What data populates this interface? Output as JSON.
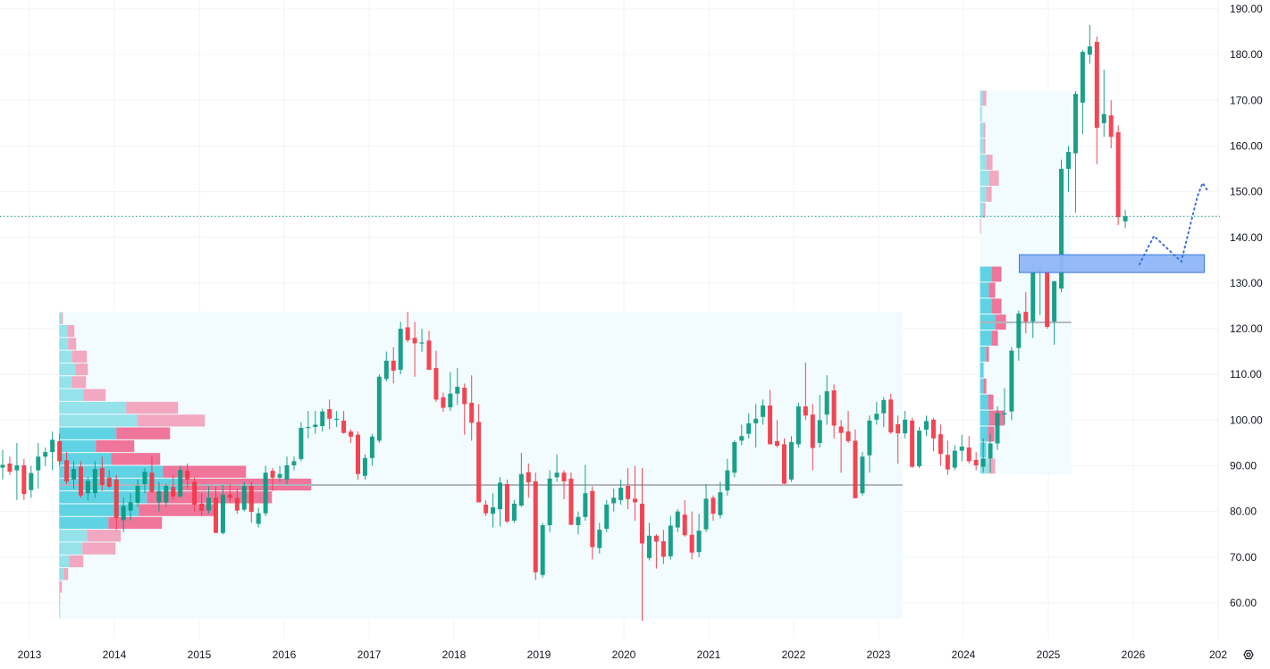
{
  "chart_data": {
    "type": "candlestick",
    "title": "",
    "interval": "1M",
    "start_month": "2012-09",
    "colors": {
      "up": "#089981",
      "down": "#f23645",
      "grid": "#f0f3fa",
      "profile_bg": "#f2fbfe",
      "poc": "#b2b5be",
      "zone_fill": "#8fb6f7",
      "zone_border": "#3c7be0",
      "projection": "#3c6fd8"
    },
    "ylim": [
      52,
      192
    ],
    "y_ticks": [
      "190.00",
      "180.00",
      "170.00",
      "160.00",
      "150.00",
      "140.00",
      "130.00",
      "120.00",
      "110.00",
      "100.00",
      "90.00",
      "80.00",
      "70.00",
      "60.00"
    ],
    "x_ticks": [
      "2013",
      "2014",
      "2015",
      "2016",
      "2017",
      "2018",
      "2019",
      "2020",
      "2021",
      "2022",
      "2023",
      "2024",
      "2025",
      "2026",
      "202"
    ],
    "last_price": 144.6,
    "candles": [
      [
        89.6,
        93.5,
        87,
        90.2
      ],
      [
        90.5,
        92,
        88,
        88.7
      ],
      [
        89,
        95,
        82.5,
        90.1
      ],
      [
        90.1,
        91.5,
        82.5,
        83.8
      ],
      [
        84.7,
        90,
        83,
        88.4
      ],
      [
        89,
        95,
        85,
        92
      ],
      [
        92,
        94,
        90,
        93
      ],
      [
        93,
        97.5,
        89,
        95.7
      ],
      [
        95.4,
        97,
        90,
        91
      ],
      [
        91.2,
        93,
        86,
        86.6
      ],
      [
        87,
        91,
        85,
        89.3
      ],
      [
        89.8,
        91,
        83,
        83.5
      ],
      [
        84,
        87.5,
        82.5,
        86.7
      ],
      [
        84,
        91,
        83,
        89.3
      ],
      [
        89.5,
        92,
        84.5,
        85.8
      ],
      [
        87.4,
        89,
        85,
        85.4
      ],
      [
        87,
        88,
        76,
        78.6
      ],
      [
        78.1,
        83,
        75.5,
        81.2
      ],
      [
        80.2,
        84,
        78,
        82
      ],
      [
        81.9,
        87,
        81,
        85.6
      ],
      [
        86,
        89.5,
        84,
        88.7
      ],
      [
        88.5,
        92,
        84,
        84.3
      ],
      [
        82,
        86.5,
        80,
        84.5
      ],
      [
        82,
        86,
        81,
        85.6
      ],
      [
        85.4,
        88,
        82.5,
        83.3
      ],
      [
        83.3,
        90,
        83,
        89.1
      ],
      [
        88.9,
        90.5,
        85,
        87
      ],
      [
        86.5,
        87.5,
        80,
        81.5
      ],
      [
        81.7,
        84,
        79,
        80.2
      ],
      [
        80.2,
        85.5,
        79.5,
        83
      ],
      [
        83,
        85.5,
        75.3,
        75.3
      ],
      [
        75.3,
        85.8,
        75,
        83.7
      ],
      [
        83.7,
        86,
        82,
        83
      ],
      [
        83,
        85,
        79.5,
        80.2
      ],
      [
        80.4,
        86.5,
        80,
        85.6
      ],
      [
        85.6,
        86.5,
        77.5,
        79.9
      ],
      [
        77.3,
        80.8,
        76.5,
        79.6
      ],
      [
        79.6,
        90,
        79,
        88.5
      ],
      [
        88.9,
        89.5,
        84.5,
        87.4
      ],
      [
        87.4,
        90,
        86.5,
        88.2
      ],
      [
        87,
        92,
        86,
        90.1
      ],
      [
        90.1,
        92,
        89,
        91
      ],
      [
        91.5,
        99.5,
        91,
        98.3
      ],
      [
        98.3,
        102,
        96,
        98.5
      ],
      [
        98.5,
        102,
        97,
        99
      ],
      [
        98.7,
        102.5,
        97.5,
        101.9
      ],
      [
        102.4,
        104.5,
        98,
        100.3
      ],
      [
        100.3,
        102,
        98.5,
        100.3
      ],
      [
        99.9,
        102,
        97,
        97.2
      ],
      [
        97.5,
        98,
        95,
        96.4
      ],
      [
        96.8,
        97.5,
        87,
        88.2
      ],
      [
        87.8,
        92.5,
        87,
        91.7
      ],
      [
        91.7,
        97,
        90,
        96.4
      ],
      [
        95.5,
        110,
        95,
        109.5
      ],
      [
        109,
        115,
        108.5,
        113
      ],
      [
        113,
        116,
        108,
        110.8
      ],
      [
        111,
        121.5,
        110,
        120
      ],
      [
        120.3,
        123.7,
        117,
        117.5
      ],
      [
        118,
        121.5,
        109.5,
        116.8
      ],
      [
        117,
        120,
        115,
        117
      ],
      [
        117.4,
        119.5,
        111,
        111
      ],
      [
        111.4,
        115.2,
        104,
        104.5
      ],
      [
        105,
        106,
        101.8,
        102.7
      ],
      [
        102.8,
        110.5,
        102,
        105.8
      ],
      [
        105.8,
        111.4,
        103.3,
        107.3
      ],
      [
        107.1,
        108,
        96.8,
        103.5
      ],
      [
        103.8,
        109.8,
        95.5,
        99.4
      ],
      [
        99.6,
        103.5,
        82,
        82
      ],
      [
        81.5,
        82.5,
        79,
        79.6
      ],
      [
        79.5,
        84,
        76.5,
        80.9
      ],
      [
        80.5,
        87.5,
        76.7,
        86.3
      ],
      [
        86,
        87,
        77.5,
        77.8
      ],
      [
        78,
        82.5,
        77.5,
        81.7
      ],
      [
        81.3,
        92.8,
        81,
        88.2
      ],
      [
        88.6,
        90.5,
        83,
        86.4
      ],
      [
        86.6,
        88.5,
        65,
        66.7
      ],
      [
        66.1,
        77.5,
        65.5,
        77
      ],
      [
        77,
        89,
        75.5,
        87.2
      ],
      [
        87.5,
        92.5,
        86.5,
        88.5
      ],
      [
        88.5,
        89,
        82.7,
        86.6
      ],
      [
        87.2,
        88.5,
        77,
        77.1
      ],
      [
        77,
        80,
        75,
        78.8
      ],
      [
        78.8,
        90.2,
        78,
        84
      ],
      [
        84.5,
        85.5,
        69.5,
        72.2
      ],
      [
        72,
        77.5,
        70.8,
        76
      ],
      [
        76.2,
        82.5,
        75.5,
        81.5
      ],
      [
        81.8,
        85,
        80,
        83
      ],
      [
        82.5,
        87,
        81.5,
        85.2
      ],
      [
        85.6,
        89.5,
        80.5,
        82.7
      ],
      [
        82.8,
        90,
        78,
        82
      ],
      [
        81.7,
        89.5,
        56.1,
        73
      ],
      [
        69.8,
        77.5,
        69.3,
        74.7
      ],
      [
        74.7,
        75,
        67.5,
        73.4
      ],
      [
        73.5,
        76,
        68.5,
        70.1
      ],
      [
        70.2,
        79,
        69.5,
        76.9
      ],
      [
        76.5,
        80.5,
        75.5,
        80
      ],
      [
        79.3,
        82.5,
        74.5,
        74.8
      ],
      [
        74.9,
        80,
        69.5,
        71
      ],
      [
        71.1,
        79.5,
        70,
        75.8
      ],
      [
        76.1,
        86,
        75.5,
        82.8
      ],
      [
        83,
        83.5,
        78,
        79.5
      ],
      [
        79.2,
        86.5,
        78.5,
        84.2
      ],
      [
        84.6,
        91.5,
        83.5,
        89
      ],
      [
        88.5,
        95.6,
        87.5,
        95.2
      ],
      [
        95.5,
        99,
        94.5,
        96.5
      ],
      [
        97,
        101.5,
        96,
        99.3
      ],
      [
        99.3,
        103.5,
        94,
        100.3
      ],
      [
        100.7,
        104.5,
        99,
        103.2
      ],
      [
        103.2,
        106.6,
        95,
        94.7
      ],
      [
        95.4,
        100,
        94,
        94.4
      ],
      [
        94.7,
        96,
        86,
        86.1
      ],
      [
        87,
        96.5,
        86.5,
        95.2
      ],
      [
        94.7,
        103.8,
        94,
        103
      ],
      [
        103,
        112.6,
        100,
        101
      ],
      [
        101.2,
        103.5,
        89,
        93.9
      ],
      [
        95,
        105.5,
        94,
        100
      ],
      [
        101.2,
        109.8,
        99,
        106.3
      ],
      [
        106.5,
        107.8,
        96,
        98.8
      ],
      [
        98.6,
        100,
        88.5,
        97.2
      ],
      [
        97.5,
        102,
        95,
        95.4
      ],
      [
        95.5,
        98,
        82.9,
        82.9
      ],
      [
        84,
        93,
        83.5,
        92
      ],
      [
        92.3,
        101,
        88.5,
        99.9
      ],
      [
        100.1,
        104,
        99,
        101.4
      ],
      [
        101.5,
        105,
        98.5,
        104.4
      ],
      [
        104.5,
        105.8,
        97,
        97.3
      ],
      [
        99.1,
        101,
        90.5,
        97.1
      ],
      [
        97.1,
        102,
        96,
        100.1
      ],
      [
        99.9,
        100.5,
        89.5,
        89.8
      ],
      [
        89.9,
        98.5,
        89.5,
        97.7
      ],
      [
        97.9,
        101,
        96.5,
        99.8
      ],
      [
        100.1,
        100.5,
        93.2,
        96
      ],
      [
        96.9,
        99,
        90,
        92.6
      ],
      [
        92.4,
        95.5,
        88,
        89.2
      ],
      [
        89.6,
        94.5,
        89,
        93.3
      ],
      [
        93.3,
        96.8,
        91,
        94.2
      ],
      [
        94,
        96.5,
        90.5,
        91
      ],
      [
        91.3,
        93,
        89,
        90.1
      ],
      [
        89.8,
        96,
        88.5,
        91.6
      ],
      [
        91.6,
        97,
        88.5,
        94.9
      ],
      [
        94.9,
        103,
        93.5,
        101.5
      ],
      [
        101.4,
        107,
        99,
        101.5
      ],
      [
        101.9,
        116,
        100,
        115.2
      ],
      [
        115.8,
        124,
        113,
        123.3
      ],
      [
        123.7,
        128,
        119,
        121.6
      ],
      [
        121.6,
        134.5,
        118,
        132.6
      ],
      [
        132.6,
        133.5,
        123,
        133.1
      ],
      [
        132.5,
        133,
        120,
        120.4
      ],
      [
        121.6,
        130.5,
        116.5,
        130.4
      ],
      [
        128.8,
        157,
        128,
        155
      ],
      [
        155,
        160,
        150,
        158.7
      ],
      [
        158.4,
        172,
        145.4,
        171.4
      ],
      [
        169.5,
        181,
        162.6,
        180.6
      ],
      [
        180,
        186.5,
        178,
        181.8
      ],
      [
        182.8,
        184,
        156,
        164
      ],
      [
        165,
        176.7,
        162,
        167
      ],
      [
        166.7,
        170,
        159.5,
        162
      ],
      [
        163,
        164.5,
        142.7,
        144.4
      ],
      [
        143.5,
        146,
        142,
        144.6
      ]
    ],
    "volume_profiles": [
      {
        "name": "profile-2013-2023",
        "start": 2013.33,
        "end": 2023.22,
        "top": 123.7,
        "row_size": 2.8,
        "poc": 85.8,
        "value_area_rows": [
          9,
          16
        ],
        "rows_up": [
          2,
          9,
          10,
          14,
          18,
          14,
          27,
          75,
          87,
          64,
          41,
          58,
          116,
          137,
          98,
          89,
          55,
          31,
          26,
          11,
          5,
          0,
          0,
          1
        ],
        "rows_down": [
          2,
          8,
          9,
          17,
          14,
          16,
          25,
          58,
          76,
          60,
          43,
          55,
          93,
          145,
          140,
          86,
          60,
          38,
          37,
          16,
          5,
          3,
          1,
          0
        ]
      },
      {
        "name": "profile-2024-2025",
        "start": 2024.13,
        "end": 2025.2,
        "top": 172.2,
        "row_size": 3.5,
        "poc": 121.4,
        "value_area_rows": [
          11,
          22
        ],
        "rows_up": [
          3,
          2,
          4,
          4,
          7,
          10,
          7,
          4,
          0,
          0,
          0,
          13,
          10,
          13,
          17,
          13,
          7,
          4,
          4,
          9,
          10,
          9,
          7,
          10
        ],
        "rows_down": [
          4,
          0,
          2,
          2,
          7,
          11,
          6,
          2,
          1,
          0,
          0,
          11,
          7,
          11,
          12,
          7,
          3,
          0,
          3,
          6,
          17,
          7,
          0,
          7
        ]
      }
    ],
    "zone": {
      "from": 2024.59,
      "to": 2026.76,
      "price_high": 136.2,
      "price_low": 132.3
    },
    "projection_path": [
      [
        2026.0,
        134.1
      ],
      [
        2026.17,
        140.3
      ],
      [
        2026.49,
        134.7
      ],
      [
        2026.68,
        149.0
      ],
      [
        2026.74,
        151.9
      ],
      [
        2026.81,
        149.9
      ]
    ]
  },
  "toolbar": {
    "settings_icon": "settings-icon"
  }
}
